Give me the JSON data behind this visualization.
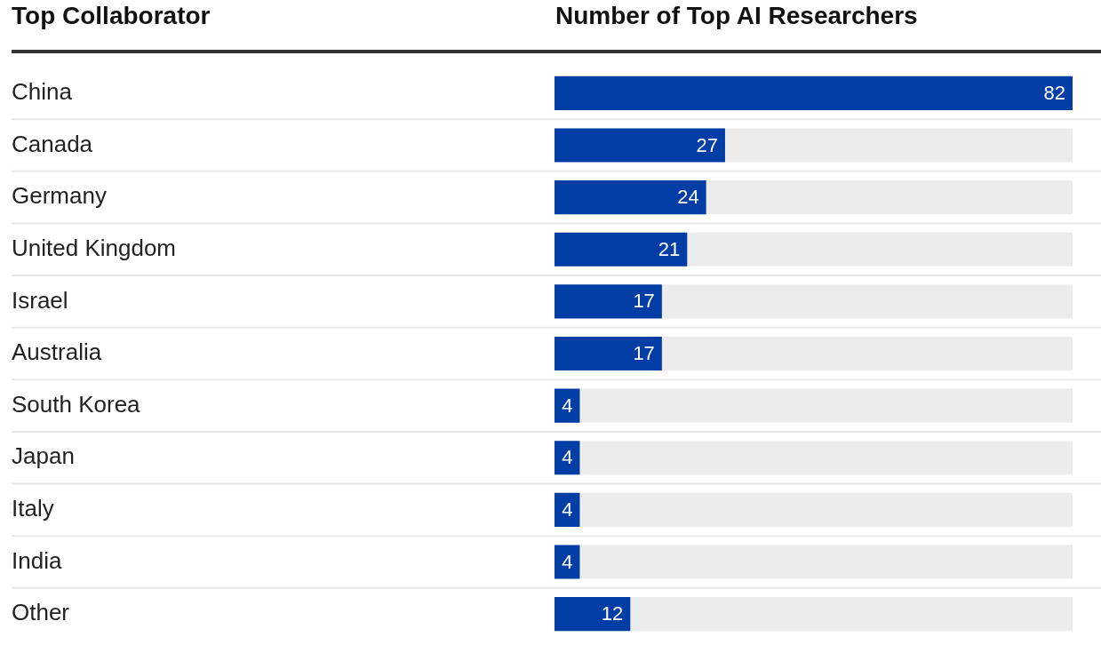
{
  "chart_data": {
    "type": "bar",
    "orientation": "horizontal",
    "ylabel": "Top Collaborator",
    "xlabel": "Number of Top AI Researchers",
    "categories": [
      "China",
      "Canada",
      "Germany",
      "United Kingdom",
      "Israel",
      "Australia",
      "South Korea",
      "Japan",
      "Italy",
      "India",
      "Other"
    ],
    "values": [
      82,
      27,
      24,
      21,
      17,
      17,
      4,
      4,
      4,
      4,
      12
    ],
    "color": "#003da5",
    "xlim": [
      0,
      82
    ],
    "data_labels": true,
    "legend": false,
    "grid": false
  }
}
